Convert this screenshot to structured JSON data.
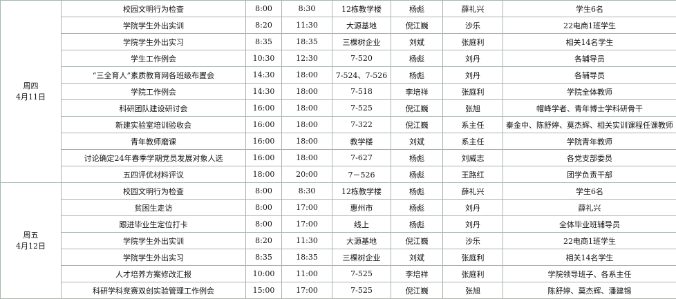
{
  "table": {
    "groups": [
      {
        "day": "周四",
        "date": "4月11日",
        "rows": [
          [
            "校园文明行为检查",
            "8:00",
            "8:30",
            "12栋教学楼",
            "杨彪",
            "薛礼兴",
            "学生6名"
          ],
          [
            "学院学生外出实训",
            "8:20",
            "11:30",
            "大源基地",
            "倪江巍",
            "沙乐",
            "22电商1班学生"
          ],
          [
            "学院学生外出实习",
            "8:35",
            "18:35",
            "三棵树企业",
            "刘斌",
            "张庭利",
            "相关14名学生"
          ],
          [
            "学生工作例会",
            "10:30",
            "12:30",
            "7-520",
            "杨彪",
            "刘丹",
            "各辅导员"
          ],
          [
            "“三全育人”素质教育网各班级布置会",
            "14:30",
            "18:00",
            "7-524、7-526",
            "杨彪",
            "刘丹",
            "各辅导员"
          ],
          [
            "学院工作例会",
            "14:30",
            "18:00",
            "7-518",
            "李培祥",
            "张庭利",
            "学院全体教师"
          ],
          [
            "科研团队建设研讨会",
            "16:00",
            "18:00",
            "7-525",
            "倪江巍",
            "张旭",
            "帽峰学者、青年博士学科研骨干"
          ],
          [
            "新建实验室培训验收会",
            "16:00",
            "18:00",
            "7-322",
            "倪江巍",
            "系主任",
            "秦金中、陈舒婷、莫杰辉、相关实训课程任课教师"
          ],
          [
            "青年教师磨课",
            "16:00",
            "18:00",
            "教学楼",
            "刘斌",
            "系主任",
            "学院青年教师"
          ],
          [
            "讨论确定24年春季学期党员发展对象人选",
            "16:00",
            "18:00",
            "7-627",
            "杨彪",
            "刘威志",
            "各党支部委员"
          ],
          [
            "五四评优材料评议",
            "18:00",
            "20:00",
            "7－526",
            "杨彪",
            "王路红",
            "团学负责干部"
          ]
        ]
      },
      {
        "day": "周五",
        "date": "4月12日",
        "rows": [
          [
            "校园文明行为检查",
            "8:00",
            "8:30",
            "12栋教学楼",
            "杨彪",
            "薛礼兴",
            "学生6名"
          ],
          [
            "贫困生走访",
            "8:00",
            "17:00",
            "惠州市",
            "杨彪",
            "刘丹",
            "薛礼兴"
          ],
          [
            "跟进毕业生定位打卡",
            "8:00",
            "17:00",
            "线上",
            "杨彪",
            "刘丹",
            "全体毕业班辅导员"
          ],
          [
            "学院学生外出实训",
            "8:20",
            "11:30",
            "大源基地",
            "倪江巍",
            "沙乐",
            "22电商1班学生"
          ],
          [
            "学院学生外出实习",
            "8:35",
            "18:35",
            "三棵树企业",
            "刘斌",
            "张庭利",
            "相关14名学生"
          ],
          [
            "人才培养方案修改汇报",
            "10:00",
            "11:00",
            "7-525",
            "李培祥",
            "张庭利",
            "学院领导班子、各系主任"
          ],
          [
            "科研学科竞赛双创实验管理工作例会",
            "15:00",
            "17:00",
            "7-525",
            "倪江巍",
            "张旭",
            "陈舒婷、莫杰辉、潘建锡"
          ]
        ]
      }
    ]
  }
}
